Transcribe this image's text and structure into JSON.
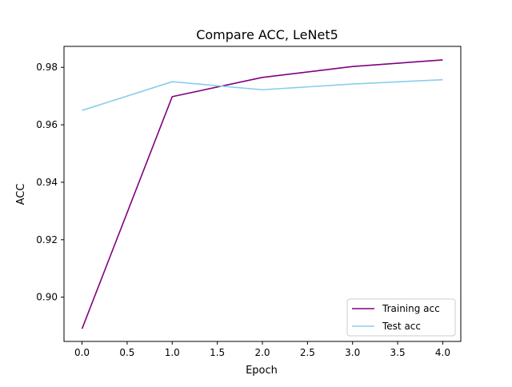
{
  "chart_data": {
    "type": "line",
    "title": "Compare ACC, LeNet5",
    "xlabel": "Epoch",
    "ylabel": "ACC",
    "x": [
      0,
      1,
      2,
      3,
      4
    ],
    "series": [
      {
        "name": "Training acc",
        "color": "#800080",
        "values": [
          0.889,
          0.9698,
          0.9765,
          0.9803,
          0.9826
        ]
      },
      {
        "name": "Test acc",
        "color": "#87ceeb",
        "values": [
          0.965,
          0.975,
          0.9722,
          0.9742,
          0.9757
        ]
      }
    ],
    "xlim": [
      -0.2,
      4.2
    ],
    "ylim": [
      0.8846,
      0.9873
    ],
    "xticks": [
      0,
      0.5,
      1,
      1.5,
      2,
      2.5,
      3,
      3.5,
      4
    ],
    "xtick_labels": [
      "0.0",
      "0.5",
      "1.0",
      "1.5",
      "2.0",
      "2.5",
      "3.0",
      "3.5",
      "4.0"
    ],
    "yticks": [
      0.9,
      0.92,
      0.94,
      0.96,
      0.98
    ],
    "ytick_labels": [
      "0.90",
      "0.92",
      "0.94",
      "0.96",
      "0.98"
    ],
    "grid": false,
    "legend_position": "lower-right"
  }
}
